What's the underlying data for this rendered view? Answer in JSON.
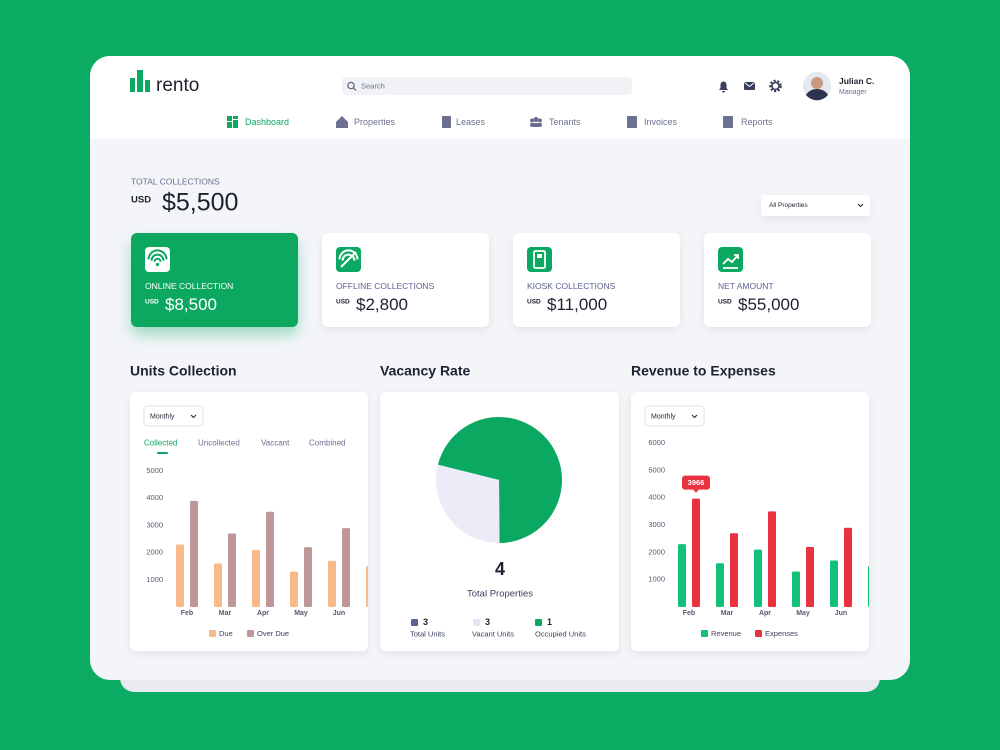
{
  "header": {
    "logo": "rento",
    "search_placeholder": "Search",
    "user_name": "Julian C.",
    "user_role": "Manager"
  },
  "nav": [
    "Dashboard",
    "Properties",
    "Leases",
    "Tenants",
    "Invoices",
    "Reports"
  ],
  "total": {
    "label": "TOTAL COLLECTIONS",
    "currency": "USD",
    "amount": "$5,500"
  },
  "filter": "All Properties",
  "cards": [
    {
      "label": "ONLINE COLLECTION",
      "currency": "USD",
      "amount": "$8,500"
    },
    {
      "label": "OFFLINE COLLECTIONS",
      "currency": "USD",
      "amount": "$2,800"
    },
    {
      "label": "KIOSK COLLECTIONS",
      "currency": "USD",
      "amount": "$11,000"
    },
    {
      "label": "NET AMOUNT",
      "currency": "USD",
      "amount": "$55,000"
    }
  ],
  "chart_data": [
    {
      "type": "bar",
      "title": "Units Collection",
      "period": "Monthly",
      "tabs": [
        "Collected",
        "Uncollected",
        "Vaccant",
        "Combined"
      ],
      "categories": [
        "Feb",
        "Mar",
        "Apr",
        "May",
        "Jun",
        null
      ],
      "series": [
        {
          "name": "Due",
          "color": "#f8b98b",
          "values": [
            2300,
            1600,
            2100,
            1300,
            1700,
            1500
          ]
        },
        {
          "name": "Over Due",
          "color": "#c09797",
          "values": [
            3900,
            2700,
            3500,
            2200,
            2900,
            null
          ]
        }
      ],
      "ylim": [
        0,
        5000
      ],
      "yticks": [
        1000,
        2000,
        3000,
        4000,
        5000
      ]
    },
    {
      "type": "pie",
      "title": "Vacancy Rate",
      "values": [
        71,
        29
      ],
      "colors": [
        "#0aa861",
        "#ececf8"
      ],
      "center_value": 4,
      "center_label": "Total Properties",
      "legend": [
        {
          "name": "Total Units",
          "value": 3,
          "color": "#5d6391"
        },
        {
          "name": "Vacant Units",
          "value": 3,
          "color": "#e6e6f5"
        },
        {
          "name": "Occupied Units",
          "value": 1,
          "color": "#0aa861"
        }
      ]
    },
    {
      "type": "bar",
      "title": "Revenue to Expenses",
      "period": "Monthly",
      "categories": [
        "Feb",
        "Mar",
        "Apr",
        "May",
        "Jun",
        null
      ],
      "series": [
        {
          "name": "Revenue",
          "color": "#12c07a",
          "values": [
            2300,
            1600,
            2100,
            1300,
            1700,
            1500
          ]
        },
        {
          "name": "Expenses",
          "color": "#e8323f",
          "values": [
            3966,
            2700,
            3500,
            2200,
            2900,
            null
          ]
        }
      ],
      "ylim": [
        0,
        6000
      ],
      "yticks": [
        1000,
        2000,
        3000,
        4000,
        5000,
        6000
      ]
    }
  ]
}
